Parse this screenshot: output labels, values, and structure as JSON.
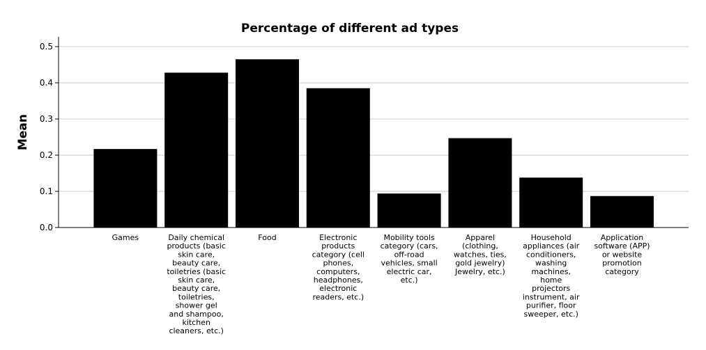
{
  "chart_data": {
    "type": "bar",
    "title": "Percentage of different ad types",
    "xlabel": "",
    "ylabel": "Mean",
    "ylim": [
      0,
      0.5
    ],
    "yticks": [
      "0.0",
      "0.1",
      "0.2",
      "0.3",
      "0.4",
      "0.5"
    ],
    "grid": true,
    "categories": [
      "Games",
      "Daily chemical products (basic skin care, beauty care, toiletries (basic skin care, beauty care, toiletries, shower gel and shampoo, kitchen cleaners, etc.)",
      "Food",
      "Electronic products category (cell phones, computers, headphones, electronic readers, etc.)",
      "Mobility tools category (cars, off-road vehicles, small electric car, etc.)",
      "Apparel (clothing, watches, ties, gold jewelry) Jewelry, etc.)",
      "Household appliances (air conditioners, washing machines, home projectors instrument, air purifier, floor sweeper, etc.)",
      "Application software (APP) or website promotion category"
    ],
    "category_lines": [
      [
        "Games"
      ],
      [
        "Daily chemical",
        "products (basic",
        "skin care,",
        "beauty care,",
        "toiletries (basic",
        "skin care,",
        "beauty care,",
        "toiletries,",
        "shower gel",
        "and shampoo,",
        "kitchen",
        "cleaners, etc.)"
      ],
      [
        "Food"
      ],
      [
        "Electronic",
        "products",
        "category (cell",
        "phones,",
        "computers,",
        "headphones,",
        "electronic",
        "readers, etc.)"
      ],
      [
        "Mobility tools",
        "category (cars,",
        "off-road",
        "vehicles, small",
        "electric car,",
        "etc.)"
      ],
      [
        "Apparel",
        "(clothing,",
        "watches, ties,",
        "gold jewelry)",
        "Jewelry, etc.)"
      ],
      [
        "Household",
        "appliances (air",
        "conditioners,",
        "washing",
        "machines,",
        "home",
        "projectors",
        "instrument, air",
        "purifier, floor",
        "sweeper, etc.)"
      ],
      [
        "Application",
        "software (APP)",
        "or website",
        "promotion",
        "category"
      ]
    ],
    "values": [
      0.217,
      0.428,
      0.465,
      0.385,
      0.094,
      0.247,
      0.138,
      0.087
    ],
    "bar_color": "#000000"
  }
}
